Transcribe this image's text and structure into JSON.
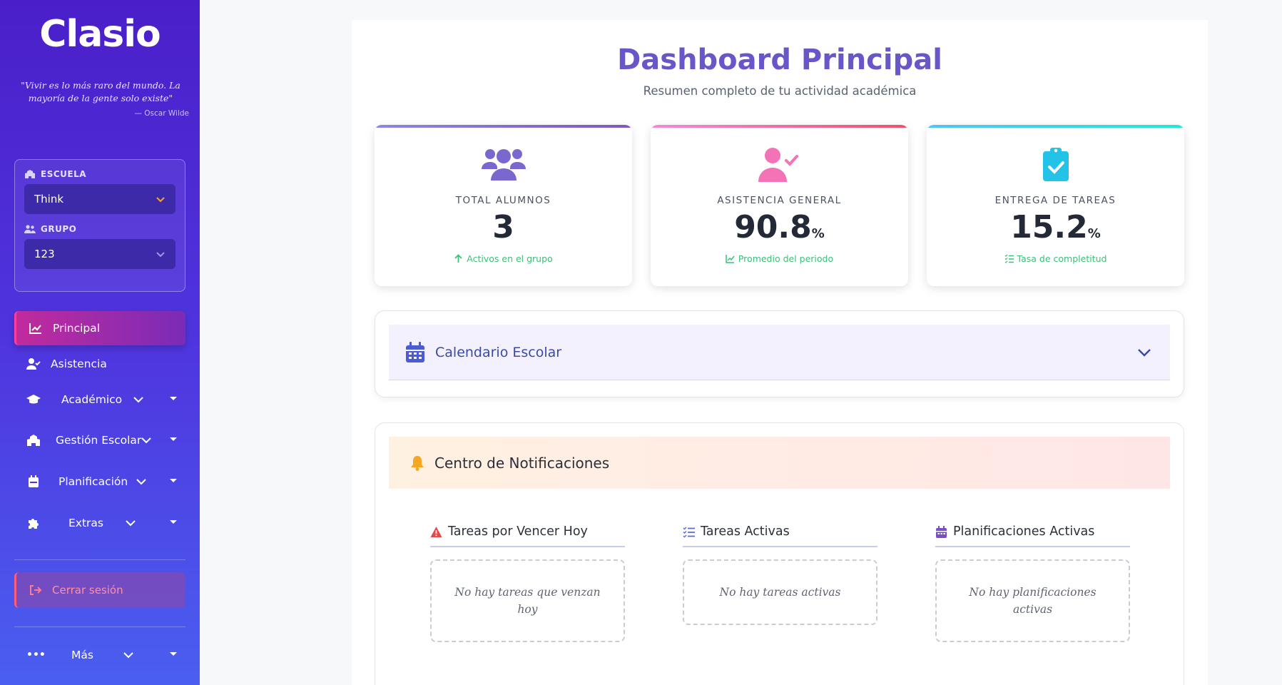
{
  "sidebar": {
    "logo": "Clasio",
    "quote": "\"Vivir es lo más raro del mundo. La mayoría de la gente solo existe\"",
    "quote_author": "— Oscar Wilde",
    "escuela_label": "ESCUELA",
    "escuela_value": "Think",
    "grupo_label": "GRUPO",
    "grupo_value": "123",
    "nav": {
      "principal": "Principal",
      "asistencia": "Asistencia",
      "academico": "Académico",
      "gestion": "Gestión Escolar",
      "planificacion": "Planificación",
      "extras": "Extras",
      "mas": "Más"
    },
    "logout": "Cerrar sesión",
    "accent_chevron": "#f0a030"
  },
  "main": {
    "title": "Dashboard Principal",
    "subtitle": "Resumen completo de tu actividad académica",
    "stats": [
      {
        "label": "TOTAL ALUMNOS",
        "value": "3",
        "unit": "",
        "note": "Activos en el grupo",
        "icon": "users-icon",
        "color": "#7b68cf"
      },
      {
        "label": "ASISTENCIA GENERAL",
        "value": "90.8",
        "unit": "%",
        "note": "Promedio del periodo",
        "icon": "user-check-icon",
        "color": "#f472b6"
      },
      {
        "label": "ENTREGA DE TAREAS",
        "value": "15.2",
        "unit": "%",
        "note": "Tasa de completitud",
        "icon": "clipboard-check-icon",
        "color": "#22c3e6"
      }
    ],
    "calendar": {
      "title": "Calendario Escolar"
    },
    "notifications": {
      "title": "Centro de Notificaciones",
      "columns": [
        {
          "title": "Tareas por Vencer Hoy",
          "empty": "No hay tareas que venzan hoy"
        },
        {
          "title": "Tareas Activas",
          "empty": "No hay tareas activas"
        },
        {
          "title": "Planificaciones Activas",
          "empty": "No hay planificaciones activas"
        }
      ]
    }
  }
}
